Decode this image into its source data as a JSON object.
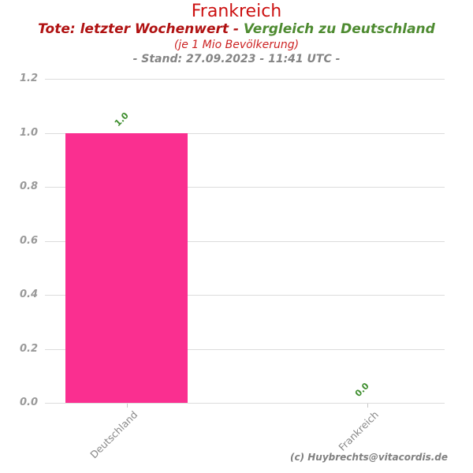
{
  "header": {
    "title": "Frankreich",
    "subtitle_red": "Tote: letzter Wochenwert - ",
    "subtitle_green": "Vergleich zu Deutschland",
    "subtitle2": "(je 1 Mio Bevölkerung)",
    "stand": "- Stand: 27.09.2023 - 11:41 UTC -"
  },
  "footer": {
    "credit": "(c) Huybrechts@vitacordis.de"
  },
  "colors": {
    "title_red": "#cc1111",
    "subtitle_dark_red": "#b01212",
    "subtitle_green": "#4e8b31",
    "subtitle2_red": "#cc2222",
    "stand_gray": "#848484",
    "bar_pink": "#fa2f90",
    "value_green": "#3e8e2e",
    "y_label_gray": "#999999",
    "x_label_gray": "#888888",
    "grid_gray": "#dcdcdc",
    "tick_gray": "#c8c8c8"
  },
  "chart_data": {
    "type": "bar",
    "title": "Frankreich",
    "subtitle": "Tote: letzter Wochenwert - Vergleich zu Deutschland (je 1 Mio Bevölkerung) - Stand: 27.09.2023 - 11:41 UTC -",
    "categories": [
      "Deutschland",
      "Frankreich"
    ],
    "values": [
      1.0,
      0.0
    ],
    "value_labels": [
      "1.0",
      "0.0"
    ],
    "xlabel": "",
    "ylabel": "",
    "ylim": [
      0.0,
      1.2
    ],
    "yticks": [
      0.0,
      0.2,
      0.4,
      0.6,
      0.8,
      1.0,
      1.2
    ],
    "grid": true,
    "legend": false
  }
}
